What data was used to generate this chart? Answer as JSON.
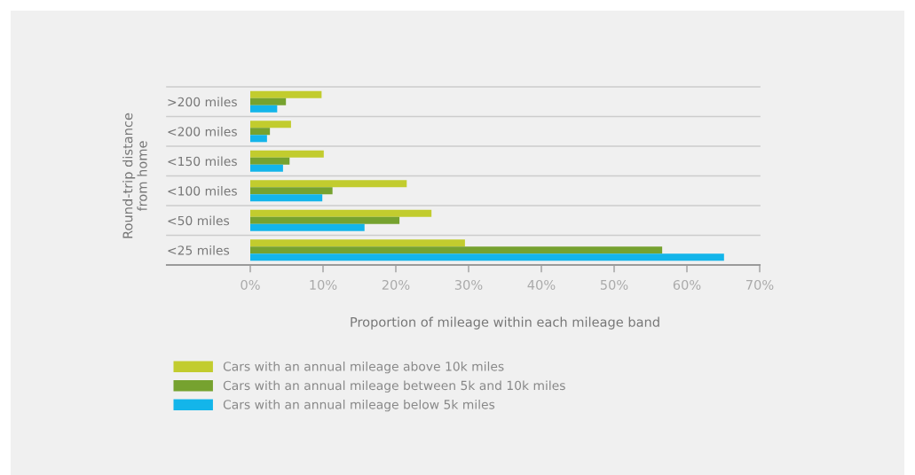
{
  "chart_data": {
    "type": "bar",
    "orientation": "horizontal",
    "xlabel": "Proportion of mileage within each mileage band",
    "ylabel": "Round-trip distance\nfrom home",
    "categories": [
      ">200 miles",
      "<200 miles",
      "<150 miles",
      "<100 miles",
      "<50 miles",
      "<25 miles"
    ],
    "series": [
      {
        "name": "Cars with an annual mileage above 10k miles",
        "color": "#c2cc2e",
        "values": [
          9.8,
          5.6,
          10.1,
          21.5,
          24.9,
          29.5
        ]
      },
      {
        "name": "Cars with an annual mileage between 5k and 10k miles",
        "color": "#76a22f",
        "values": [
          4.9,
          2.7,
          5.4,
          11.3,
          20.5,
          56.6
        ]
      },
      {
        "name": "Cars with an annual mileage below 5k miles",
        "color": "#13b5ea",
        "values": [
          3.7,
          2.3,
          4.5,
          9.9,
          15.7,
          65.1
        ]
      }
    ],
    "xlim": [
      0,
      70
    ],
    "xticks": [
      {
        "value": 0,
        "label": "0%"
      },
      {
        "value": 10,
        "label": "10%"
      },
      {
        "value": 20,
        "label": "20%"
      },
      {
        "value": 30,
        "label": "30%"
      },
      {
        "value": 40,
        "label": "40%"
      },
      {
        "value": 50,
        "label": "50%"
      },
      {
        "value": 60,
        "label": "60%"
      },
      {
        "value": 70,
        "label": "70%"
      }
    ],
    "grid": "y",
    "legend": "bottom"
  }
}
